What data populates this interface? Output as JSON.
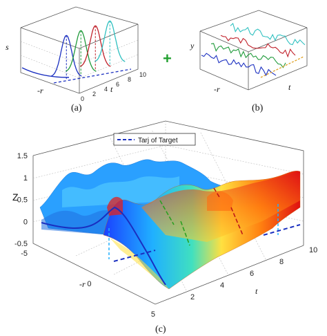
{
  "panels": {
    "a": {
      "caption": "(a)",
      "ylabel": "s",
      "xlabel": "-r",
      "tlabel": "t",
      "t_ticks": [
        "0",
        "2",
        "4",
        "6",
        "8",
        "10"
      ]
    },
    "b": {
      "caption": "(b)",
      "ylabel": "y",
      "xlabel": "-r",
      "tlabel": "t"
    },
    "plus_symbol": "+",
    "c": {
      "caption": "(c)",
      "zlabel": "Z",
      "xlabel": "-r",
      "tlabel": "t",
      "legend": "Tarj of Target"
    }
  },
  "chart_data": [
    {
      "type": "line",
      "panel": "a",
      "title": "",
      "xlabel": "t",
      "ylabel": "s",
      "t_range": [
        0,
        10
      ],
      "series": [
        {
          "color": "#1a2fc0",
          "peak_t": 2.5
        },
        {
          "color": "#1f9a3a",
          "peak_t": 4.5
        },
        {
          "color": "#c0202a",
          "peak_t": 6.5
        },
        {
          "color": "#2fc0c0",
          "peak_t": 8.5
        }
      ]
    },
    {
      "type": "line",
      "panel": "b",
      "title": "",
      "xlabel": "t",
      "ylabel": "y",
      "series": [
        {
          "color": "#1a2fc0"
        },
        {
          "color": "#1f9a3a"
        },
        {
          "color": "#c0202a"
        },
        {
          "color": "#2fc0c0"
        }
      ],
      "trend_color": "#e0a020"
    },
    {
      "type": "area",
      "panel": "c",
      "title": "",
      "zlabel": "Z",
      "xlabel": "-r",
      "ylabel": "t",
      "zlim": [
        -0.5,
        1.5
      ],
      "z_ticks": [
        "-0.5",
        "0",
        "0.5",
        "1",
        "1.5"
      ],
      "r_ticks": [
        "-5",
        "0",
        "5"
      ],
      "t_ticks": [
        "2",
        "4",
        "6",
        "8",
        "10"
      ],
      "legend": [
        {
          "name": "Tarj of Target",
          "style": "dashed",
          "color": "#1a2fc0"
        }
      ],
      "colormap": [
        "#1a40ff",
        "#20b0ff",
        "#40e0c0",
        "#ffe040",
        "#ff8010",
        "#e01010"
      ]
    }
  ]
}
